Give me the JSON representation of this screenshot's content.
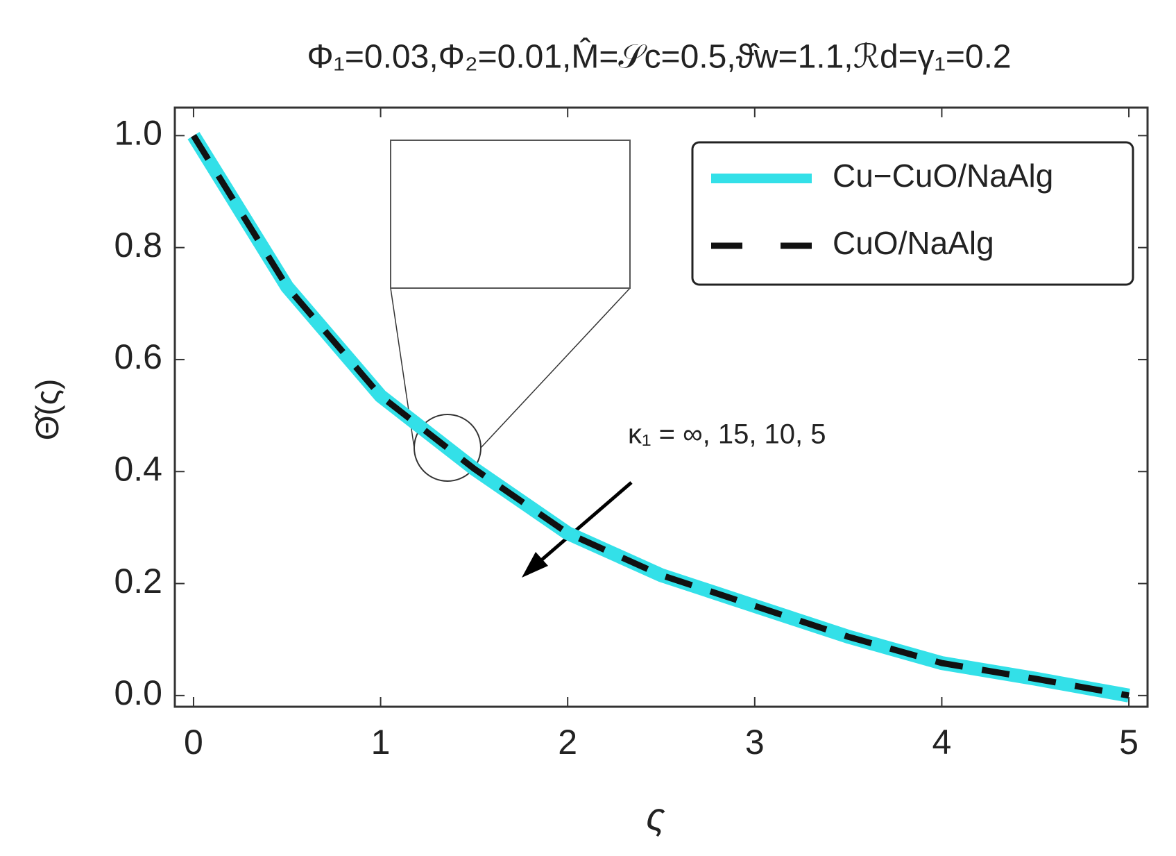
{
  "chart_data": {
    "type": "line",
    "title": "Φ₁=0.03,Φ₂=0.01,M̂=𝒮c=0.5,ϑ̂w=1.1,ℛd=γ₁=0.2",
    "x_label": "ς",
    "y_label": "Θ̂(ς)",
    "annotation": "κ₁ = ∞, 15, 10, 5",
    "x": [
      0,
      0.5,
      1,
      1.5,
      2,
      2.5,
      3,
      3.5,
      4,
      4.5,
      5
    ],
    "series": [
      {
        "name": "Cu−CuO/NaAlg",
        "color": "#33e0e8",
        "style": "solid",
        "values": [
          1.0,
          0.73,
          0.535,
          0.405,
          0.29,
          0.215,
          0.16,
          0.105,
          0.058,
          0.03,
          0.0
        ]
      },
      {
        "name": "CuO/NaAlg",
        "color": "#111111",
        "style": "dashed",
        "values": [
          1.0,
          0.73,
          0.535,
          0.405,
          0.29,
          0.215,
          0.16,
          0.105,
          0.058,
          0.03,
          0.0
        ]
      }
    ],
    "xlim": [
      -0.1,
      5.1
    ],
    "ylim": [
      -0.02,
      1.05
    ],
    "xticks": [
      0,
      1,
      2,
      3,
      4,
      5
    ],
    "yticks": [
      {
        "value": 0,
        "label": "0.0"
      },
      {
        "value": 0.2,
        "label": "0.2"
      },
      {
        "value": 0.4,
        "label": "0.4"
      },
      {
        "value": 0.6,
        "label": "0.6"
      },
      {
        "value": 0.8,
        "label": "0.8"
      },
      {
        "value": 1,
        "label": "1.0"
      }
    ],
    "legend": "top-right",
    "grid": false
  }
}
